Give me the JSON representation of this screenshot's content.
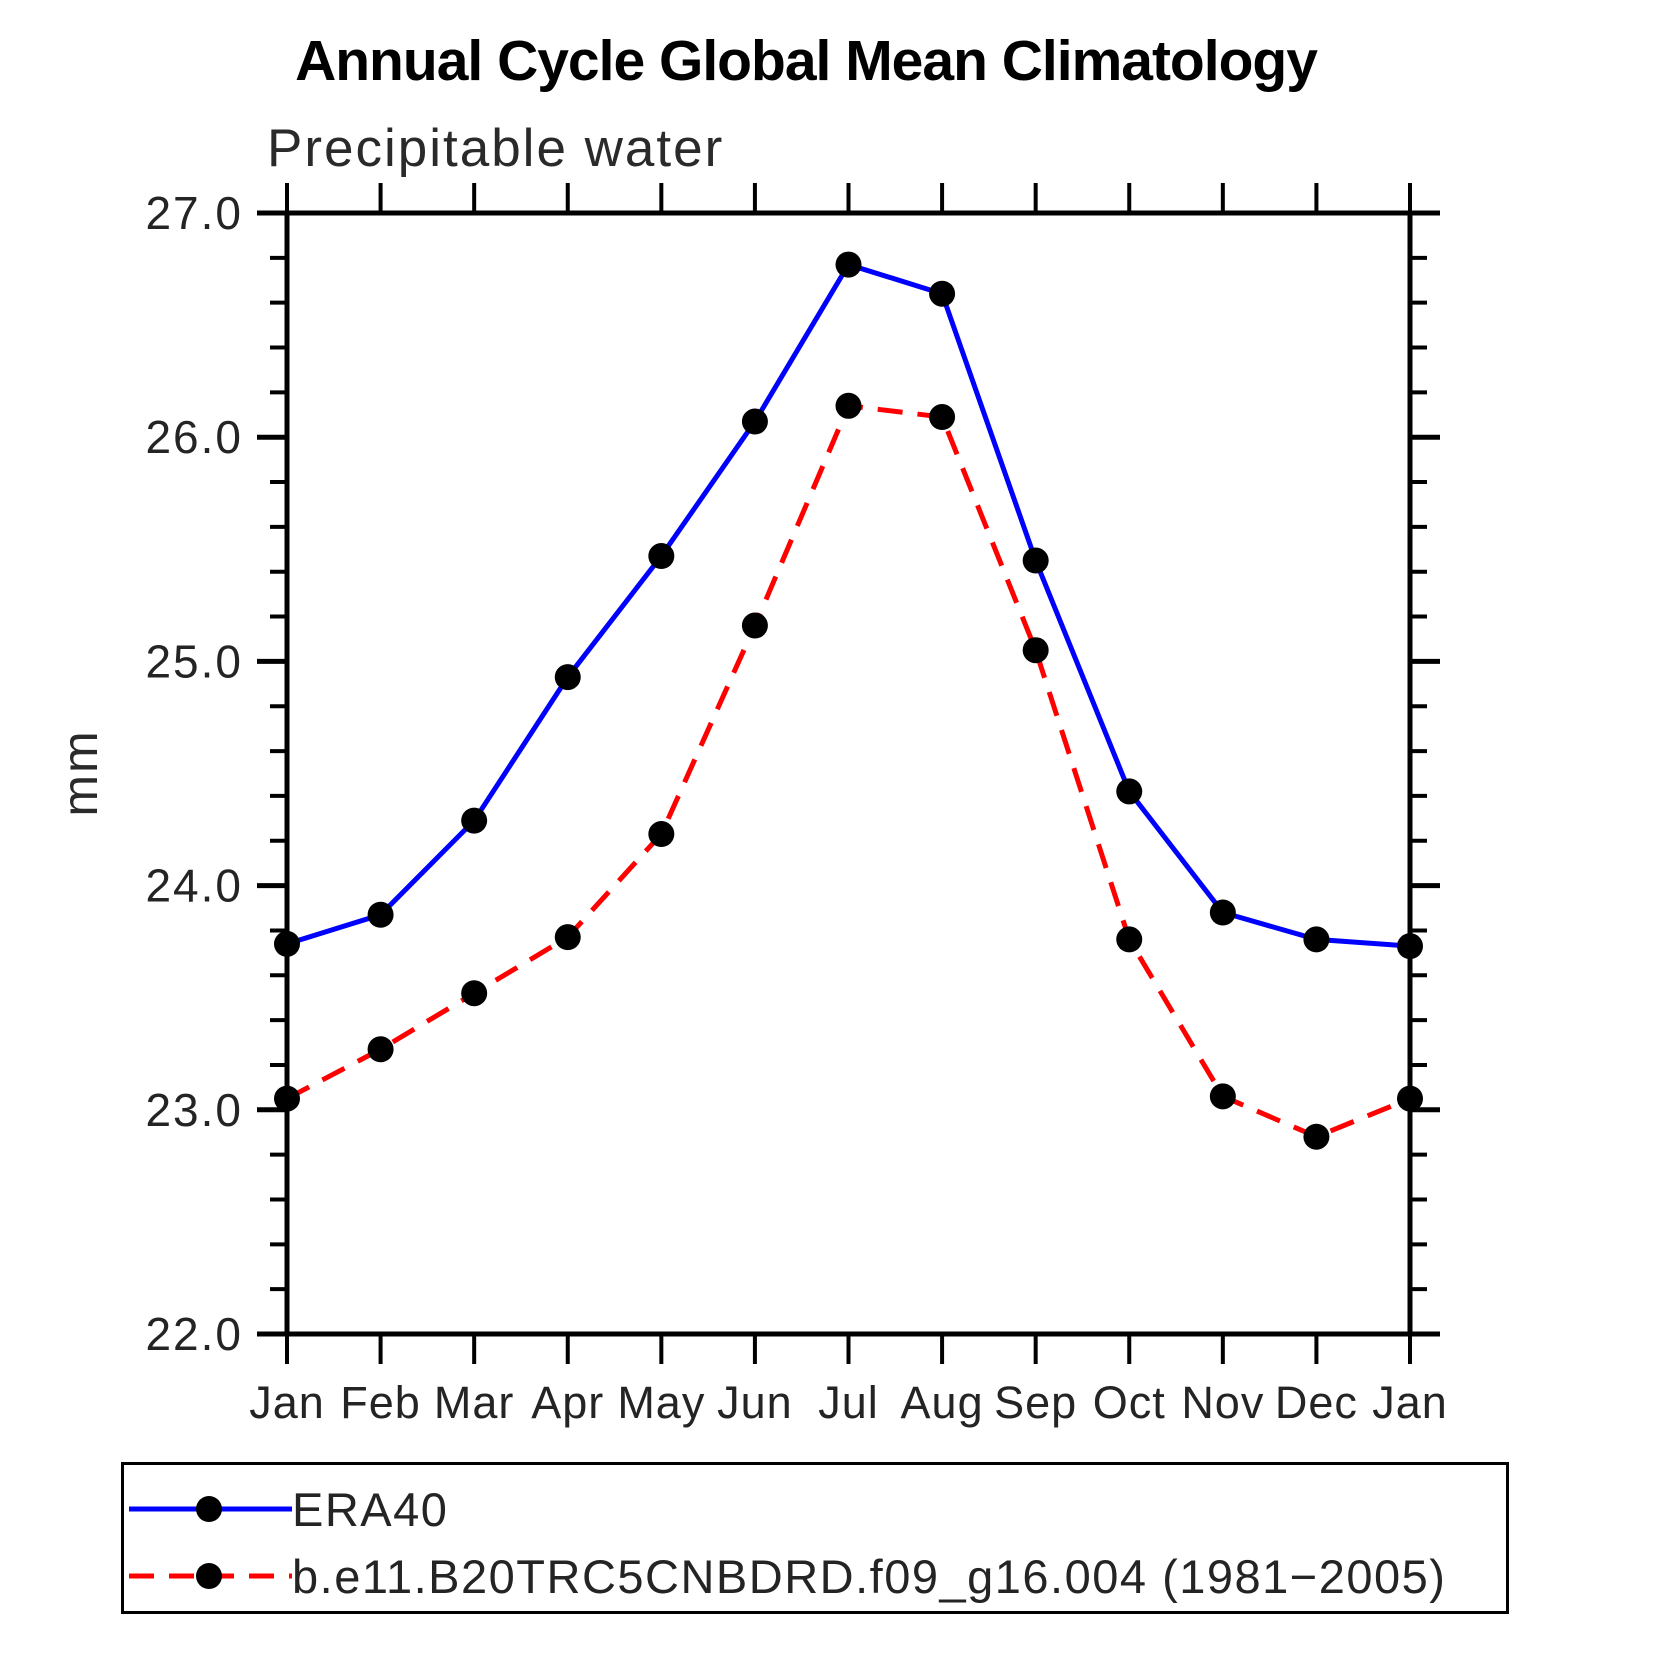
{
  "chart_data": {
    "type": "line",
    "title": "Annual Cycle Global Mean Climatology",
    "subtitle": "Precipitable water",
    "ylabel": "mm",
    "categories": [
      "Jan",
      "Feb",
      "Mar",
      "Apr",
      "May",
      "Jun",
      "Jul",
      "Aug",
      "Sep",
      "Oct",
      "Nov",
      "Dec",
      "Jan"
    ],
    "series": [
      {
        "name": "ERA40",
        "color": "#0000ff",
        "line_style": "solid",
        "marker": "filled-circle",
        "marker_color": "#000000",
        "values": [
          23.74,
          23.87,
          24.29,
          24.93,
          25.47,
          26.07,
          26.77,
          26.64,
          25.45,
          24.42,
          23.88,
          23.76,
          23.73
        ]
      },
      {
        "name": "b.e11.B20TRC5CNBDRD.f09_g16.004 (1981−2005)",
        "color": "#ff0000",
        "line_style": "dashed",
        "marker": "filled-circle",
        "marker_color": "#000000",
        "values": [
          23.05,
          23.27,
          23.52,
          23.77,
          24.23,
          25.16,
          26.14,
          26.09,
          25.05,
          23.76,
          23.06,
          22.88,
          23.05
        ]
      }
    ],
    "ylim": [
      22.0,
      27.0
    ],
    "ytick_major": 1.0,
    "ytick_minor": 0.2,
    "ytick_labels": [
      "22.0",
      "23.0",
      "24.0",
      "25.0",
      "26.0",
      "27.0"
    ],
    "grid": false,
    "axis_color": "#000000",
    "legend_position": "bottom-box"
  }
}
